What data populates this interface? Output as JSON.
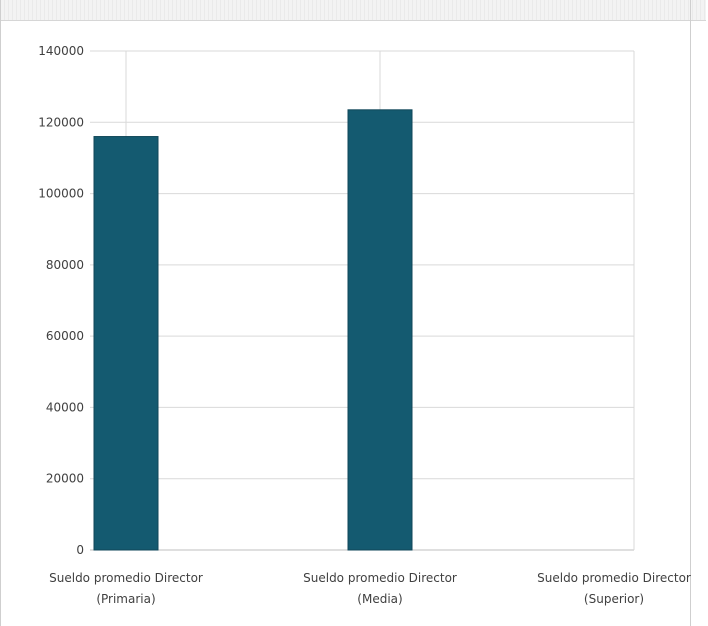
{
  "chart_data": {
    "type": "bar",
    "categories": [
      [
        "Sueldo promedio Director",
        "(Primaria)"
      ],
      [
        "Sueldo promedio Director",
        "(Media)"
      ],
      [
        "Sueldo promedio Director",
        "(Superior)"
      ]
    ],
    "series": [
      {
        "values": [
          116000,
          123500,
          0
        ]
      }
    ],
    "ylim": [
      0,
      140000
    ],
    "yticks": [
      "0",
      "20000",
      "40000",
      "60000",
      "80000",
      "100000",
      "120000",
      "140000"
    ],
    "grid": true,
    "colors": {
      "bar": "#145a70",
      "grid": "#d9d9d9",
      "axis": "#bfbfbf"
    }
  }
}
